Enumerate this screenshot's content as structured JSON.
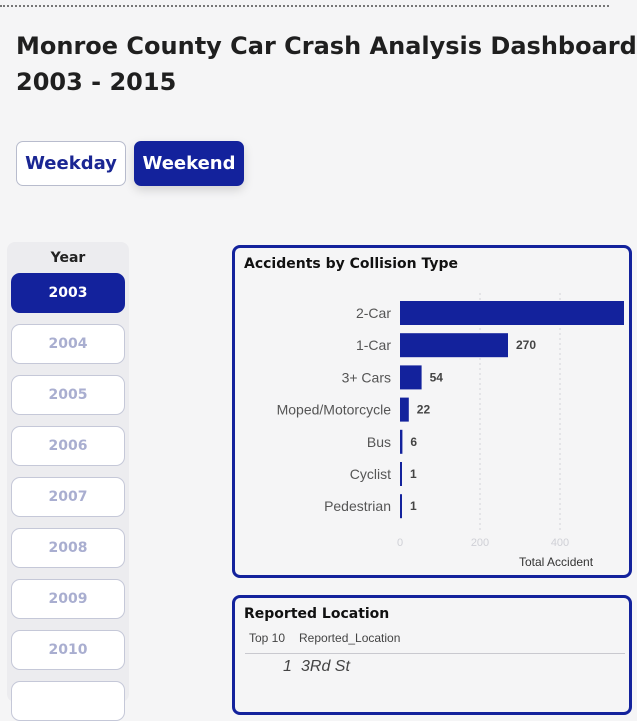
{
  "title": {
    "line1": "Monroe County Car Crash Analysis Dashboard",
    "line2": "2003 - 2015"
  },
  "day_toggle": {
    "options": [
      "Weekday",
      "Weekend"
    ],
    "selected": "Weekend"
  },
  "year_slicer": {
    "header": "Year",
    "selected": "2003",
    "years": [
      "2003",
      "2004",
      "2005",
      "2006",
      "2007",
      "2008",
      "2009",
      "2010"
    ]
  },
  "collision_card": {
    "title": "Accidents by Collision Type",
    "chart_data": {
      "type": "bar",
      "orientation": "horizontal",
      "title": "Accidents by Collision Type",
      "categories": [
        "2-Car",
        "1-Car",
        "3+ Cars",
        "Moped/Motorcycle",
        "Bus",
        "Cyclist",
        "Pedestrian"
      ],
      "values": [
        560,
        270,
        54,
        22,
        6,
        1,
        1
      ],
      "data_labels": [
        "",
        "270",
        "54",
        "22",
        "6",
        "1",
        "1"
      ],
      "x_ticks": [
        "0",
        "200",
        "400"
      ],
      "xlabel": "Total Accident",
      "xlim": [
        0,
        550
      ],
      "grid": "vertical dotted",
      "bar_color": "#13229c"
    }
  },
  "location_card": {
    "title": "Reported Location",
    "columns": [
      "Top 10",
      "Reported_Location"
    ],
    "rows": [
      {
        "rank": "1",
        "location": "3Rd St"
      }
    ]
  }
}
